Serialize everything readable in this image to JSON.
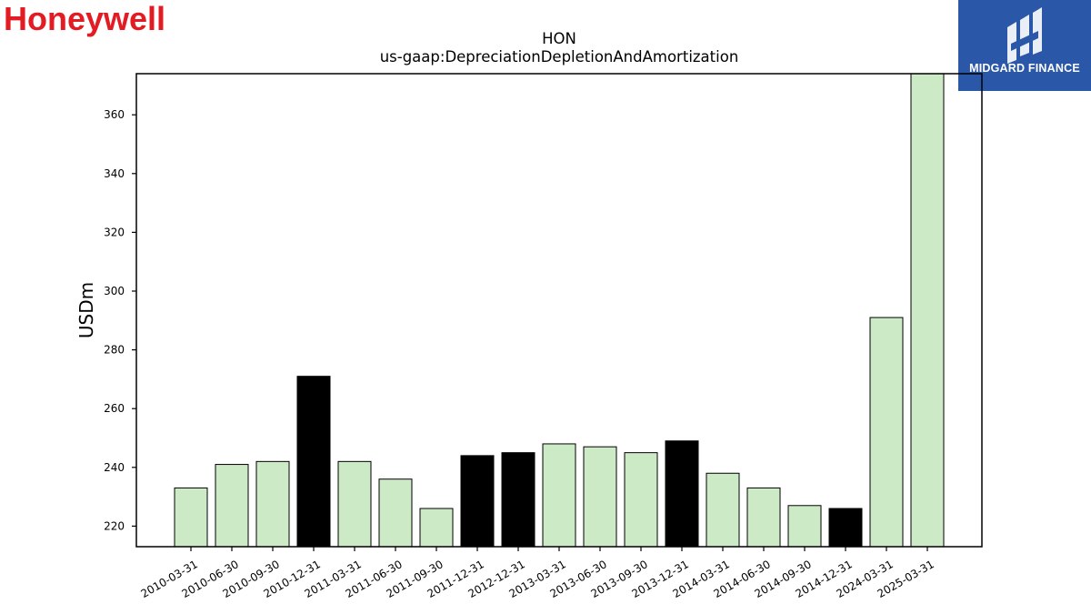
{
  "brand": {
    "logo_text": "Honeywell",
    "logo_color": "#e31b23"
  },
  "publisher": {
    "name": "MIDGARD FINANCE",
    "badge_color": "#2b57a8",
    "icon": "midgard-logo-icon"
  },
  "chart_data": {
    "type": "bar",
    "title": "HON",
    "subtitle": "us-gaap:DepreciationDepletionAndAmortization",
    "xlabel": "",
    "ylabel": "USDm",
    "ylim": [
      213,
      374
    ],
    "yticks": [
      220,
      240,
      260,
      280,
      300,
      320,
      340,
      360
    ],
    "grid": false,
    "categories": [
      "2010-03-31",
      "2010-06-30",
      "2010-09-30",
      "2010-12-31",
      "2011-03-31",
      "2011-06-30",
      "2011-09-30",
      "2011-12-31",
      "2012-12-31",
      "2013-03-31",
      "2013-06-30",
      "2013-09-30",
      "2013-12-31",
      "2014-03-31",
      "2014-06-30",
      "2014-09-30",
      "2014-12-31",
      "2024-03-31",
      "2025-03-31"
    ],
    "values": [
      233,
      241,
      242,
      271,
      242,
      236,
      226,
      244,
      245,
      248,
      247,
      245,
      249,
      238,
      233,
      227,
      226,
      291,
      374
    ],
    "bar_colors": [
      "#cdeac6",
      "#cdeac6",
      "#cdeac6",
      "#000000",
      "#cdeac6",
      "#cdeac6",
      "#cdeac6",
      "#000000",
      "#000000",
      "#cdeac6",
      "#cdeac6",
      "#cdeac6",
      "#000000",
      "#cdeac6",
      "#cdeac6",
      "#cdeac6",
      "#000000",
      "#cdeac6",
      "#cdeac6"
    ]
  }
}
